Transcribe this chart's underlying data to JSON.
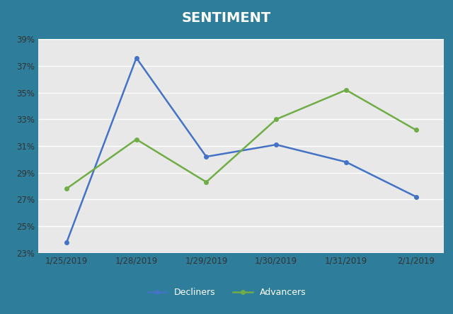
{
  "title": "SENTIMENT",
  "title_color": "#ffffff",
  "teal_bg_color": "#2e7d9a",
  "plot_bg_color": "#e8e8e8",
  "x_labels": [
    "1/25/2019",
    "1/28/2019",
    "1/29/2019",
    "1/30/2019",
    "1/31/2019",
    "2/1/2019"
  ],
  "decliners": [
    0.2375,
    0.376,
    0.302,
    0.311,
    0.298,
    0.272
  ],
  "advancers": [
    0.278,
    0.315,
    0.283,
    0.33,
    0.352,
    0.322
  ],
  "decliners_color": "#4472c4",
  "advancers_color": "#70ad47",
  "ylim_min": 0.23,
  "ylim_max": 0.39,
  "yticks": [
    0.23,
    0.25,
    0.27,
    0.29,
    0.31,
    0.33,
    0.35,
    0.37,
    0.39
  ],
  "legend_labels": [
    "Decliners",
    "Advancers"
  ],
  "marker": "o",
  "markersize": 4,
  "linewidth": 1.8,
  "title_fontsize": 14,
  "tick_fontsize": 8.5,
  "legend_fontsize": 9
}
